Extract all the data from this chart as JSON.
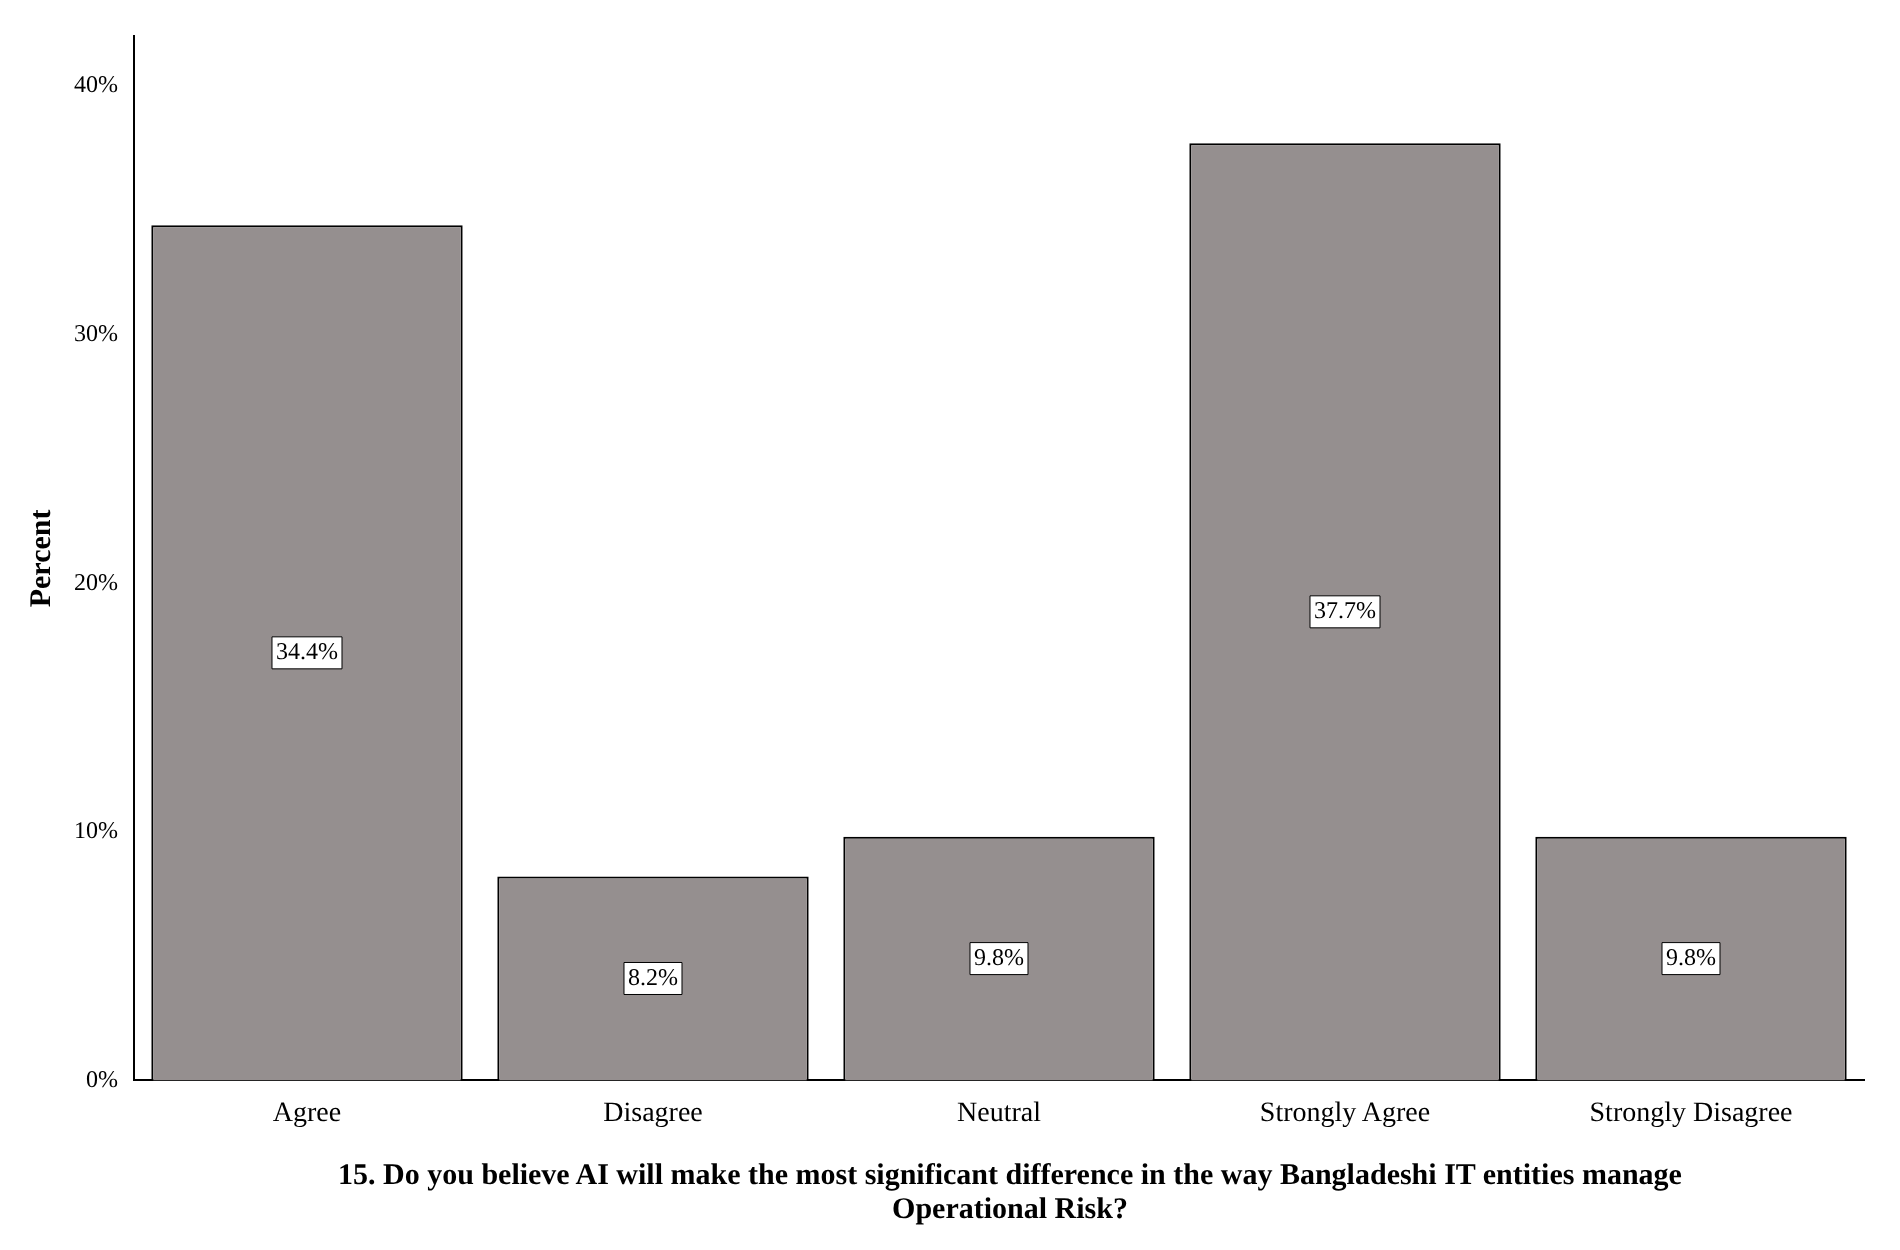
{
  "chart_data": {
    "type": "bar",
    "xlabel": "15. Do you believe AI will make the most significant difference in the way Bangladeshi IT entities manage Operational Risk?",
    "ylabel": "Percent",
    "categories": [
      "Agree",
      "Disagree",
      "Neutral",
      "Strongly Agree",
      "Strongly Disagree"
    ],
    "values": [
      34.4,
      8.2,
      9.8,
      37.7,
      9.8
    ],
    "value_labels": [
      "34.4%",
      "8.2%",
      "9.8%",
      "37.7%",
      "9.8%"
    ],
    "color": "#958f8f",
    "ylim": [
      0,
      42
    ],
    "yticks": [
      {
        "value": 0,
        "label": "0%"
      },
      {
        "value": 10,
        "label": "10%"
      },
      {
        "value": 20,
        "label": "20%"
      },
      {
        "value": 30,
        "label": "30%"
      },
      {
        "value": 40,
        "label": "40%"
      }
    ],
    "grid": false,
    "legend": false
  }
}
